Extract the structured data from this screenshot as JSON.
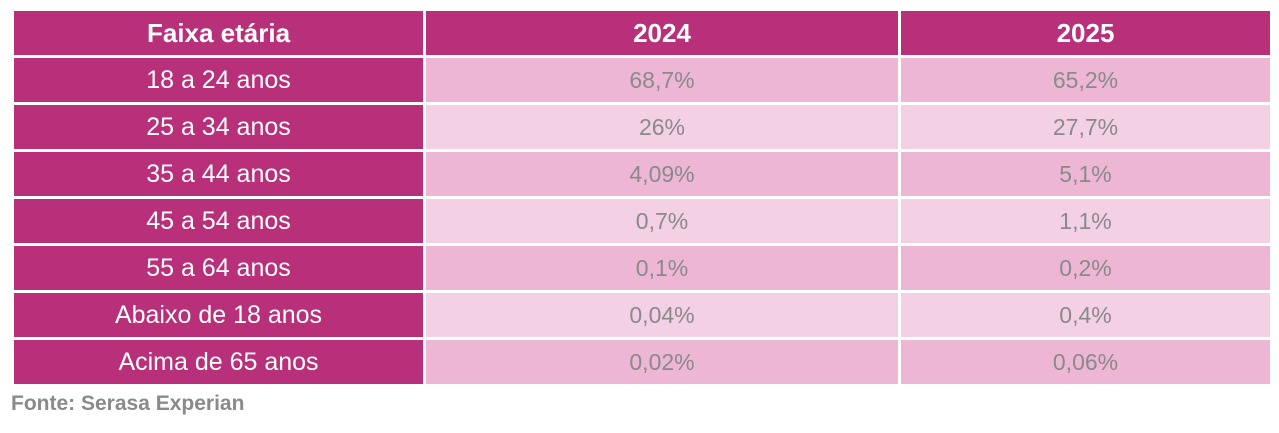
{
  "chart_data": {
    "type": "table",
    "columns": [
      "Faixa etária",
      "2024",
      "2025"
    ],
    "rows": [
      {
        "label": "18 a 24 anos",
        "values": [
          "68,7%",
          "65,2%"
        ]
      },
      {
        "label": "25 a 34 anos",
        "values": [
          "26%",
          "27,7%"
        ]
      },
      {
        "label": "35 a 44 anos",
        "values": [
          "4,09%",
          "5,1%"
        ]
      },
      {
        "label": "45 a 54 anos",
        "values": [
          "0,7%",
          "1,1%"
        ]
      },
      {
        "label": "55 a 64 anos",
        "values": [
          "0,1%",
          "0,2%"
        ]
      },
      {
        "label": "Abaixo de 18 anos",
        "values": [
          "0,04%",
          "0,4%"
        ]
      },
      {
        "label": "Acima de 65 anos",
        "values": [
          "0,02%",
          "0,06%"
        ]
      }
    ],
    "source": "Fonte: Serasa Experian"
  },
  "colors": {
    "header_bg": "#b8307a",
    "row_dark": "#ecb6d4",
    "row_light": "#f3d0e4",
    "value_text": "#8a8a8a"
  }
}
